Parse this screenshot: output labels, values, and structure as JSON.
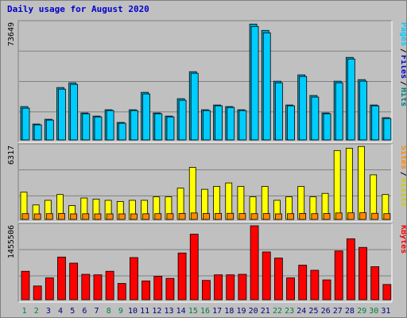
{
  "title": "Daily usage for August 2020",
  "colors": {
    "hits": "#00aacc",
    "files": "#0055dd",
    "pages": "#00ccff",
    "visits": "#ffff00",
    "sites": "#ff8800",
    "kbytes": "#ff0000",
    "weekend_day_label": "#008040",
    "weekday_day_label": "#000080"
  },
  "chart_data": [
    {
      "type": "bar",
      "ymax_label": "73649",
      "ylim": [
        0,
        73649
      ],
      "legend": [
        {
          "label": "Pages",
          "color": "#00ccff"
        },
        {
          "label": "Files",
          "color": "#0000cc"
        },
        {
          "label": "Hits",
          "color": "#008080"
        }
      ],
      "categories": [
        "1",
        "2",
        "3",
        "4",
        "5",
        "6",
        "7",
        "8",
        "9",
        "10",
        "11",
        "12",
        "13",
        "14",
        "15",
        "16",
        "17",
        "18",
        "19",
        "20",
        "21",
        "22",
        "23",
        "24",
        "25",
        "26",
        "27",
        "28",
        "29",
        "30",
        "31"
      ],
      "series": [
        {
          "name": "Hits",
          "values": [
            21000,
            10000,
            13000,
            33000,
            36000,
            17000,
            15000,
            19000,
            11000,
            19000,
            30000,
            17000,
            15000,
            26000,
            43000,
            19000,
            22000,
            21000,
            19000,
            73000,
            69000,
            37000,
            22000,
            41000,
            28000,
            17000,
            37000,
            52000,
            38000,
            22000,
            14000
          ]
        },
        {
          "name": "Files",
          "values": [
            20000,
            9500,
            12500,
            32000,
            35000,
            16500,
            14500,
            18500,
            10500,
            18500,
            29000,
            16500,
            14500,
            25000,
            42000,
            18500,
            21500,
            20500,
            18500,
            71500,
            67500,
            36000,
            21500,
            40000,
            27000,
            16500,
            36000,
            51000,
            37000,
            21500,
            13500
          ]
        }
      ]
    },
    {
      "type": "bar",
      "ymax_label": "6317",
      "ylim": [
        0,
        6317
      ],
      "legend": [
        {
          "label": "Sites",
          "color": "#ff8800"
        },
        {
          "label": "Visits",
          "color": "#cccc00"
        }
      ],
      "categories": [
        "1",
        "2",
        "3",
        "4",
        "5",
        "6",
        "7",
        "8",
        "9",
        "10",
        "11",
        "12",
        "13",
        "14",
        "15",
        "16",
        "17",
        "18",
        "19",
        "20",
        "21",
        "22",
        "23",
        "24",
        "25",
        "26",
        "27",
        "28",
        "29",
        "30",
        "31"
      ],
      "series": [
        {
          "name": "Visits",
          "values": [
            2350,
            1250,
            1650,
            2150,
            1200,
            1850,
            1750,
            1650,
            1550,
            1650,
            1650,
            1950,
            1950,
            2700,
            4500,
            2600,
            2850,
            3150,
            2850,
            1950,
            2850,
            1650,
            1950,
            2850,
            1950,
            2250,
            5950,
            6150,
            6300,
            3850,
            2150
          ]
        },
        {
          "name": "Sites",
          "values": [
            500,
            480,
            500,
            520,
            460,
            490,
            480,
            470,
            460,
            480,
            490,
            500,
            500,
            520,
            560,
            510,
            520,
            530,
            510,
            500,
            510,
            480,
            500,
            520,
            500,
            510,
            560,
            570,
            580,
            530,
            500
          ]
        }
      ]
    },
    {
      "type": "bar",
      "ymax_label": "1455506",
      "ylim": [
        0,
        1455506
      ],
      "legend": [
        {
          "label": "KBytes",
          "color": "#ff0000"
        }
      ],
      "categories": [
        "1",
        "2",
        "3",
        "4",
        "5",
        "6",
        "7",
        "8",
        "9",
        "10",
        "11",
        "12",
        "13",
        "14",
        "15",
        "16",
        "17",
        "18",
        "19",
        "20",
        "21",
        "22",
        "23",
        "24",
        "25",
        "26",
        "27",
        "28",
        "29",
        "30",
        "31"
      ],
      "series": [
        {
          "name": "KBytes",
          "values": [
            560000,
            270000,
            430000,
            840000,
            720000,
            500000,
            490000,
            560000,
            320000,
            830000,
            370000,
            460000,
            420000,
            920000,
            1290000,
            380000,
            490000,
            490000,
            500000,
            1455506,
            940000,
            820000,
            430000,
            680000,
            580000,
            390000,
            960000,
            1200000,
            1030000,
            650000,
            300000
          ]
        }
      ]
    }
  ],
  "day_labels": [
    "1",
    "2",
    "3",
    "4",
    "5",
    "6",
    "7",
    "8",
    "9",
    "10",
    "11",
    "12",
    "13",
    "14",
    "15",
    "16",
    "17",
    "18",
    "19",
    "20",
    "21",
    "22",
    "23",
    "24",
    "25",
    "26",
    "27",
    "28",
    "29",
    "30",
    "31"
  ],
  "weekend_days": [
    1,
    2,
    8,
    9,
    15,
    16,
    22,
    23,
    29,
    30
  ]
}
